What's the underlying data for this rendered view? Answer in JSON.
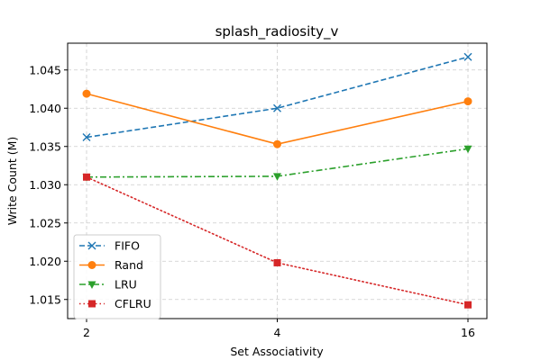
{
  "chart_data": {
    "type": "line",
    "title": "splash_radiosity_v",
    "xlabel": "Set Associativity",
    "ylabel": "Write Count (M)",
    "x": [
      2,
      4,
      16
    ],
    "x_tick_labels": [
      "2",
      "4",
      "16"
    ],
    "x_scale": "categorical-evenly-spaced",
    "ylim": [
      1.0125,
      1.0485
    ],
    "y_ticks": [
      1.015,
      1.02,
      1.025,
      1.03,
      1.035,
      1.04,
      1.045
    ],
    "y_tick_labels": [
      "1.015",
      "1.020",
      "1.025",
      "1.030",
      "1.035",
      "1.040",
      "1.045"
    ],
    "grid": true,
    "legend_position": "lower-left",
    "series": [
      {
        "name": "FIFO",
        "values": [
          1.0362,
          1.04,
          1.0467
        ],
        "color": "#1f77b4",
        "linestyle": "dashed",
        "marker": "x"
      },
      {
        "name": "Rand",
        "values": [
          1.0419,
          1.0353,
          1.0409
        ],
        "color": "#ff7f0e",
        "linestyle": "solid",
        "marker": "circle"
      },
      {
        "name": "LRU",
        "values": [
          1.031,
          1.0311,
          1.0347
        ],
        "color": "#2ca02c",
        "linestyle": "dashdot",
        "marker": "triangle-down"
      },
      {
        "name": "CFLRU",
        "values": [
          1.031,
          1.0198,
          1.0143
        ],
        "color": "#d62728",
        "linestyle": "dotted",
        "marker": "square"
      }
    ]
  }
}
